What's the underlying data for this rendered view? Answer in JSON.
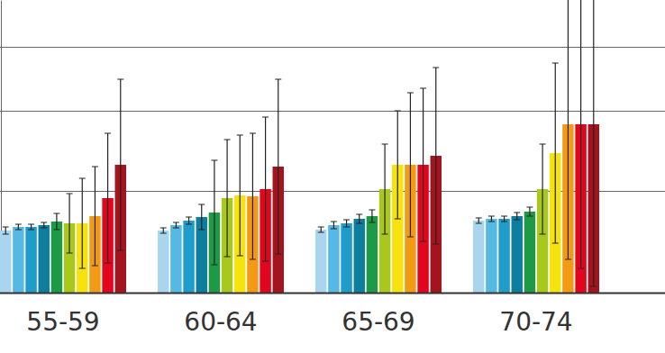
{
  "chart_data": {
    "type": "bar",
    "categories": [
      "55-59",
      "60-64",
      "65-69",
      "70-74"
    ],
    "series": [
      {
        "color": "#a9d6ee",
        "values": [
          0.69,
          0.69,
          0.7,
          0.8
        ],
        "errors": [
          0.04,
          0.03,
          0.03,
          0.03
        ]
      },
      {
        "color": "#55b9e3",
        "values": [
          0.73,
          0.75,
          0.75,
          0.82
        ],
        "errors": [
          0.03,
          0.03,
          0.04,
          0.03
        ]
      },
      {
        "color": "#1f9cc9",
        "values": [
          0.73,
          0.8,
          0.77,
          0.82
        ],
        "errors": [
          0.03,
          0.04,
          0.04,
          0.03
        ]
      },
      {
        "color": "#0d7e9e",
        "values": [
          0.75,
          0.84,
          0.82,
          0.85
        ],
        "errors": [
          0.03,
          0.14,
          0.05,
          0.04
        ]
      },
      {
        "color": "#1e9a46",
        "values": [
          0.79,
          0.89,
          0.85,
          0.9
        ],
        "errors": [
          0.09,
          0.58,
          0.07,
          0.05
        ]
      },
      {
        "color": "#a8c81e",
        "values": [
          0.77,
          1.05,
          1.15,
          1.15
        ],
        "errors": [
          0.33,
          0.65,
          0.5,
          0.5
        ]
      },
      {
        "color": "#f6e20c",
        "values": [
          0.77,
          1.08,
          1.42,
          1.55
        ],
        "errors": [
          0.5,
          0.67,
          0.6,
          1.0
        ]
      },
      {
        "color": "#f29a14",
        "values": [
          0.85,
          1.07,
          1.42,
          1.87
        ],
        "errors": [
          0.55,
          0.7,
          0.8,
          1.5
        ]
      },
      {
        "color": "#e2051e",
        "values": [
          1.05,
          1.15,
          1.42,
          1.87
        ],
        "errors": [
          0.72,
          0.8,
          0.85,
          1.6
        ]
      },
      {
        "color": "#a3141f",
        "values": [
          1.42,
          1.4,
          1.52,
          1.87
        ],
        "errors": [
          0.95,
          0.97,
          0.98,
          1.8
        ]
      }
    ],
    "ylim": [
      0,
      3.25
    ],
    "yticks": [
      1.13,
      2.02,
      2.73
    ],
    "grid": true,
    "tick_labels": "x"
  }
}
